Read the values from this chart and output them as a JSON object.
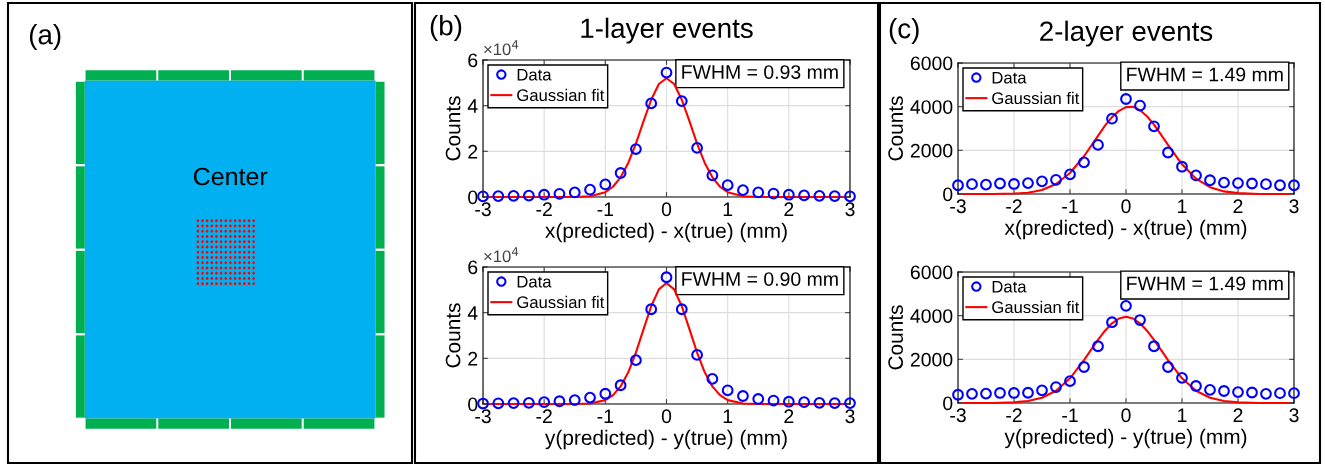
{
  "chart_data": [
    {
      "type": "other",
      "annotations": [
        "(a)",
        "Center"
      ]
    },
    {
      "type": "scatter",
      "title": "1-layer events",
      "xlabel": "x(predicted) - x(true) (mm)",
      "ylabel": "Counts",
      "annotations": [
        "(b)",
        "×10$^{4}$",
        "FWHM = 0.93 mm"
      ],
      "xlim": [
        -3,
        3
      ],
      "xticks": [
        -3,
        -2,
        -1,
        0,
        1,
        2,
        3
      ],
      "ylim": [
        0,
        6
      ],
      "yticks": [
        0,
        2,
        4,
        6
      ],
      "grid": true,
      "legend": "top left",
      "series": [
        {
          "name": "Data",
          "type": "scatter",
          "marker": "circle",
          "color": "#0000ff",
          "x": [
            -3,
            -2.75,
            -2.5,
            -2.25,
            -2,
            -1.75,
            -1.5,
            -1.25,
            -1,
            -0.75,
            -0.5,
            -0.25,
            0,
            0.25,
            0.5,
            0.75,
            1,
            1.25,
            1.5,
            1.75,
            2,
            2.25,
            2.5,
            2.75,
            3
          ],
          "values": [
            0.03,
            0.04,
            0.05,
            0.06,
            0.1,
            0.14,
            0.2,
            0.32,
            0.55,
            1.05,
            2.1,
            4.1,
            5.45,
            4.2,
            2.15,
            0.95,
            0.52,
            0.3,
            0.2,
            0.15,
            0.1,
            0.07,
            0.05,
            0.04,
            0.03
          ]
        },
        {
          "name": "Gaussian fit",
          "type": "line",
          "marker": "none",
          "color": "#ff0000",
          "x": [
            -2.9,
            -1.875,
            -1.5,
            -1.25,
            -1,
            -0.875,
            -0.75,
            -0.625,
            -0.5,
            -0.375,
            -0.25,
            -0.125,
            0,
            0.125,
            0.25,
            0.375,
            0.5,
            0.625,
            0.75,
            0.875,
            1,
            1.25,
            1.5,
            1.875,
            2.9
          ],
          "values": [
            0,
            0,
            0,
            0.03,
            0.21,
            0.45,
            0.86,
            1.49,
            2.34,
            3.32,
            4.26,
            4.95,
            5.2,
            4.95,
            4.26,
            3.32,
            2.34,
            1.49,
            0.86,
            0.45,
            0.21,
            0.03,
            0,
            0,
            0
          ]
        }
      ]
    },
    {
      "type": "scatter",
      "xlabel": "y(predicted) - y(true) (mm)",
      "ylabel": "Counts",
      "annotations": [
        "×10$^{4}$",
        "FWHM = 0.90 mm"
      ],
      "xlim": [
        -3,
        3
      ],
      "xticks": [
        -3,
        -2,
        -1,
        0,
        1,
        2,
        3
      ],
      "ylim": [
        0,
        6
      ],
      "yticks": [
        0,
        2,
        4,
        6
      ],
      "grid": true,
      "legend": "top left",
      "series": [
        {
          "name": "Data",
          "type": "scatter",
          "marker": "circle",
          "color": "#0000ff",
          "x": [
            -3,
            -2.75,
            -2.5,
            -2.25,
            -2,
            -1.75,
            -1.5,
            -1.25,
            -1,
            -0.75,
            -0.5,
            -0.25,
            0,
            0.25,
            0.5,
            0.75,
            1,
            1.25,
            1.5,
            1.75,
            2,
            2.25,
            2.5,
            2.75,
            3
          ],
          "values": [
            0.02,
            0.03,
            0.04,
            0.05,
            0.08,
            0.12,
            0.17,
            0.28,
            0.45,
            0.82,
            1.92,
            4.15,
            5.55,
            4.15,
            2.15,
            1.1,
            0.6,
            0.35,
            0.22,
            0.15,
            0.1,
            0.08,
            0.05,
            0.04,
            0.04
          ]
        },
        {
          "name": "Gaussian fit",
          "type": "line",
          "marker": "none",
          "color": "#ff0000",
          "x": [
            -2.9,
            -1.875,
            -1.5,
            -1.25,
            -1,
            -0.875,
            -0.75,
            -0.625,
            -0.5,
            -0.375,
            -0.25,
            -0.125,
            0,
            0.125,
            0.25,
            0.375,
            0.5,
            0.625,
            0.75,
            0.875,
            1,
            1.25,
            1.5,
            1.875,
            2.9
          ],
          "values": [
            0,
            0,
            0,
            0.02,
            0.17,
            0.39,
            0.77,
            1.39,
            2.25,
            3.28,
            4.28,
            5.02,
            5.3,
            5.02,
            4.28,
            3.28,
            2.25,
            1.39,
            0.77,
            0.39,
            0.17,
            0.02,
            0,
            0,
            0
          ]
        }
      ]
    },
    {
      "type": "scatter",
      "title": "2-layer events",
      "xlabel": "x(predicted) - x(true) (mm)",
      "ylabel": "Counts",
      "annotations": [
        "(c)",
        "FWHM = 1.49 mm"
      ],
      "xlim": [
        -3,
        3
      ],
      "xticks": [
        -3,
        -2,
        -1,
        0,
        1,
        2,
        3
      ],
      "ylim": [
        0,
        6000
      ],
      "yticks": [
        0,
        2000,
        4000,
        6000
      ],
      "grid": true,
      "legend": "top left",
      "series": [
        {
          "name": "Data",
          "type": "scatter",
          "marker": "circle",
          "color": "#0000ff",
          "x": [
            -3,
            -2.75,
            -2.5,
            -2.25,
            -2,
            -1.75,
            -1.5,
            -1.25,
            -1,
            -0.75,
            -0.5,
            -0.25,
            0,
            0.25,
            0.5,
            0.75,
            1,
            1.25,
            1.5,
            1.75,
            2,
            2.25,
            2.5,
            2.75,
            3
          ],
          "values": [
            400,
            450,
            430,
            480,
            460,
            500,
            580,
            650,
            900,
            1450,
            2250,
            3450,
            4350,
            4050,
            3100,
            1900,
            1250,
            850,
            630,
            520,
            500,
            480,
            450,
            400,
            400
          ]
        },
        {
          "name": "Gaussian fit",
          "type": "line",
          "marker": "none",
          "color": "#ff0000",
          "x": [
            -2.9,
            -2.375,
            -2,
            -1.75,
            -1.5,
            -1.25,
            -1,
            -0.75,
            -0.5,
            -0.375,
            -0.25,
            -0.125,
            0,
            0.125,
            0.25,
            0.375,
            0.5,
            0.625,
            0.75,
            1,
            1.25,
            1.5,
            1.75,
            2,
            2.375,
            2.9
          ],
          "values": [
            0,
            0,
            20,
            60,
            180,
            460,
            960,
            1730,
            2660,
            3130,
            3520,
            3810,
            3980,
            4000,
            3840,
            3560,
            3180,
            2720,
            2250,
            1360,
            700,
            310,
            120,
            40,
            0,
            0
          ]
        }
      ]
    },
    {
      "type": "scatter",
      "xlabel": "y(predicted) - y(true) (mm)",
      "ylabel": "Counts",
      "annotations": [
        "FWHM = 1.49 mm"
      ],
      "xlim": [
        -3,
        3
      ],
      "xticks": [
        -3,
        -2,
        -1,
        0,
        1,
        2,
        3
      ],
      "ylim": [
        0,
        6000
      ],
      "yticks": [
        0,
        2000,
        4000,
        6000
      ],
      "grid": true,
      "legend": "top left",
      "series": [
        {
          "name": "Data",
          "type": "scatter",
          "marker": "circle",
          "color": "#0000ff",
          "x": [
            -3,
            -2.75,
            -2.5,
            -2.25,
            -2,
            -1.75,
            -1.5,
            -1.25,
            -1,
            -0.75,
            -0.5,
            -0.25,
            0,
            0.25,
            0.5,
            0.75,
            1,
            1.25,
            1.5,
            1.75,
            2,
            2.25,
            2.5,
            2.75,
            3
          ],
          "values": [
            380,
            420,
            430,
            460,
            460,
            470,
            580,
            730,
            1000,
            1650,
            2600,
            3700,
            4450,
            3800,
            2600,
            1650,
            1150,
            780,
            600,
            550,
            500,
            480,
            420,
            450,
            450
          ]
        },
        {
          "name": "Gaussian fit",
          "type": "line",
          "marker": "none",
          "color": "#ff0000",
          "x": [
            -2.9,
            -2.375,
            -2,
            -1.75,
            -1.5,
            -1.25,
            -1,
            -0.75,
            -0.625,
            -0.5,
            -0.375,
            -0.25,
            -0.125,
            0,
            0.125,
            0.25,
            0.375,
            0.5,
            0.625,
            0.75,
            1,
            1.25,
            1.5,
            1.75,
            2,
            2.375,
            2.9
          ],
          "values": [
            0,
            0,
            30,
            90,
            240,
            560,
            1130,
            1960,
            2430,
            2890,
            3310,
            3650,
            3870,
            3950,
            3870,
            3650,
            3310,
            2890,
            2430,
            1960,
            1130,
            560,
            240,
            90,
            30,
            0,
            0
          ]
        }
      ]
    }
  ]
}
